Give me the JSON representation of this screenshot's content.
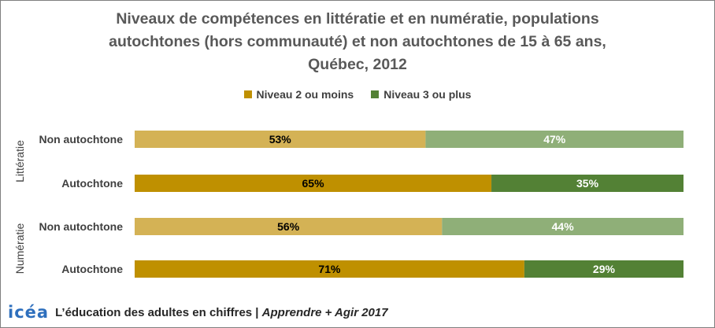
{
  "chart_data": {
    "type": "bar",
    "orientation": "horizontal",
    "stacked": true,
    "percent": true,
    "title_lines": [
      "Niveaux de compétences en littératie et en numératie, populations",
      "autochtones (hors communauté) et non autochtones de 15 à 65 ans,",
      "Québec, 2012"
    ],
    "legend_position": "top",
    "groups": [
      {
        "label": "Littératie",
        "rows": [
          {
            "category": "Non autochtone",
            "values": [
              53,
              47
            ],
            "labels": [
              "53%",
              "47%"
            ]
          },
          {
            "category": "Autochtone",
            "values": [
              65,
              35
            ],
            "labels": [
              "65%",
              "35%"
            ]
          }
        ]
      },
      {
        "label": "Numératie",
        "rows": [
          {
            "category": "Non autochtone",
            "values": [
              56,
              44
            ],
            "labels": [
              "56%",
              "44%"
            ]
          },
          {
            "category": "Autochtone",
            "values": [
              71,
              29
            ],
            "labels": [
              "71%",
              "29%"
            ]
          }
        ]
      }
    ],
    "series": [
      {
        "name": "Niveau 2 ou moins",
        "color": "#bf9000",
        "light_color": "#d4b255"
      },
      {
        "name": "Niveau 3 ou plus",
        "color": "#538135",
        "light_color": "#8faf78"
      }
    ],
    "label_colors": {
      "light_bar_text": "#000000",
      "dark_bar_text": "#ffffff"
    },
    "xlim": [
      0,
      100
    ]
  },
  "footer": {
    "logo": "icéa",
    "text_main": "L’éducation des adultes en chiffres | ",
    "text_italic": "Apprendre + Agir 2017"
  },
  "colors": {
    "logo": "#2e6fbd"
  }
}
